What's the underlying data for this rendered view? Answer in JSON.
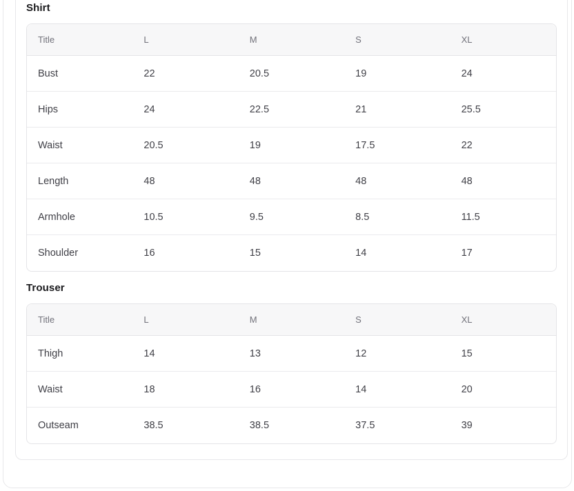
{
  "page": {
    "background": "#ffffff",
    "colors": {
      "card_border": "#e7e7ea",
      "table_border": "#e4e4e7",
      "row_divider": "#eaeaed",
      "header_bg": "#f7f7f8",
      "header_text": "#71717a",
      "cell_text": "#3f3f46",
      "heading_text": "#18181b"
    }
  },
  "sections": [
    {
      "title": "Shirt",
      "columns": [
        "Title",
        "L",
        "M",
        "S",
        "XL"
      ],
      "rows": [
        {
          "title": "Bust",
          "values": [
            "22",
            "20.5",
            "19",
            "24"
          ]
        },
        {
          "title": "Hips",
          "values": [
            "24",
            "22.5",
            "21",
            "25.5"
          ]
        },
        {
          "title": "Waist",
          "values": [
            "20.5",
            "19",
            "17.5",
            "22"
          ]
        },
        {
          "title": "Length",
          "values": [
            "48",
            "48",
            "48",
            "48"
          ]
        },
        {
          "title": "Armhole",
          "values": [
            "10.5",
            "9.5",
            "8.5",
            "11.5"
          ]
        },
        {
          "title": "Shoulder",
          "values": [
            "16",
            "15",
            "14",
            "17"
          ]
        }
      ]
    },
    {
      "title": "Trouser",
      "columns": [
        "Title",
        "L",
        "M",
        "S",
        "XL"
      ],
      "rows": [
        {
          "title": "Thigh",
          "values": [
            "14",
            "13",
            "12",
            "15"
          ]
        },
        {
          "title": "Waist",
          "values": [
            "18",
            "16",
            "14",
            "20"
          ]
        },
        {
          "title": "Outseam",
          "values": [
            "38.5",
            "38.5",
            "37.5",
            "39"
          ]
        }
      ]
    }
  ],
  "chart_data": {
    "type": "table",
    "tables": [
      {
        "title": "Shirt",
        "columns": [
          "Title",
          "L",
          "M",
          "S",
          "XL"
        ],
        "rows": [
          [
            "Bust",
            22,
            20.5,
            19,
            24
          ],
          [
            "Hips",
            24,
            22.5,
            21,
            25.5
          ],
          [
            "Waist",
            20.5,
            19,
            17.5,
            22
          ],
          [
            "Length",
            48,
            48,
            48,
            48
          ],
          [
            "Armhole",
            10.5,
            9.5,
            8.5,
            11.5
          ],
          [
            "Shoulder",
            16,
            15,
            14,
            17
          ]
        ]
      },
      {
        "title": "Trouser",
        "columns": [
          "Title",
          "L",
          "M",
          "S",
          "XL"
        ],
        "rows": [
          [
            "Thigh",
            14,
            13,
            12,
            15
          ],
          [
            "Waist",
            18,
            16,
            14,
            20
          ],
          [
            "Outseam",
            38.5,
            38.5,
            37.5,
            39
          ]
        ]
      }
    ]
  }
}
